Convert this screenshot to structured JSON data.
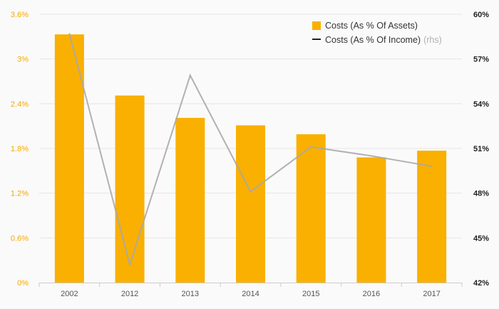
{
  "chart_data": {
    "type": "bar",
    "categories": [
      "2002",
      "2012",
      "2013",
      "2014",
      "2015",
      "2016",
      "2017"
    ],
    "series": [
      {
        "name": "Costs (As % Of Assets)",
        "type": "bar",
        "axis": "left",
        "color": "#f9b000",
        "values": [
          3.33,
          2.51,
          2.21,
          2.11,
          1.99,
          1.68,
          1.77
        ]
      },
      {
        "name": "Costs (As % Of Income)",
        "name_suffix": "(rhs)",
        "type": "line",
        "axis": "right",
        "color": "#a8a8a8",
        "values": [
          58.7,
          43.2,
          55.9,
          48.1,
          51.1,
          50.5,
          49.8
        ]
      }
    ],
    "left_axis": {
      "ylim": [
        0,
        3.6
      ],
      "ticks": [
        "0%",
        "0.6%",
        "1.2%",
        "1.8%",
        "2.4%",
        "3%",
        "3.6%"
      ],
      "color": "#f5a800"
    },
    "right_axis": {
      "ylim": [
        42,
        60
      ],
      "ticks": [
        "42%",
        "45%",
        "48%",
        "51%",
        "54%",
        "57%",
        "60%"
      ],
      "color": "#222222"
    },
    "grid": true,
    "legend": "top-right"
  }
}
